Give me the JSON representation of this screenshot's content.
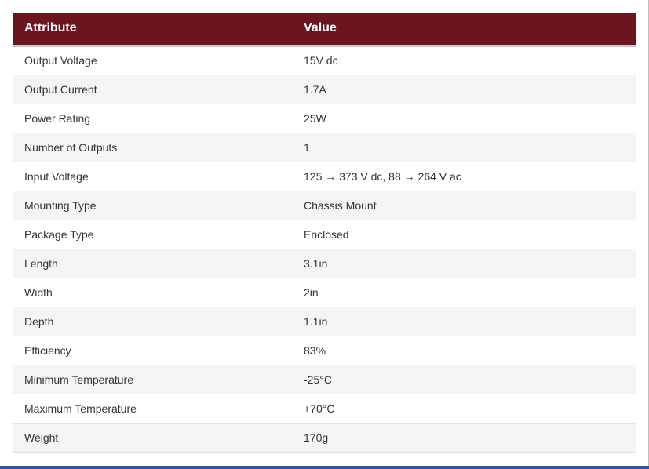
{
  "table": {
    "headers": [
      "Attribute",
      "Value"
    ],
    "rows": [
      [
        "Output Voltage",
        "15V dc"
      ],
      [
        "Output Current",
        "1.7A"
      ],
      [
        "Power Rating",
        "25W"
      ],
      [
        "Number of Outputs",
        "1"
      ],
      [
        "Input Voltage",
        "125 → 373 V dc, 88 → 264 V ac"
      ],
      [
        "Mounting Type",
        "Chassis Mount"
      ],
      [
        "Package Type",
        "Enclosed"
      ],
      [
        "Length",
        "3.1in"
      ],
      [
        "Width",
        "2in"
      ],
      [
        "Depth",
        "1.1in"
      ],
      [
        "Efficiency",
        "83%"
      ],
      [
        "Minimum Temperature",
        "-25°C"
      ],
      [
        "Maximum Temperature",
        "+70°C"
      ],
      [
        "Weight",
        "170g"
      ]
    ]
  },
  "colors": {
    "header_bg": "#6b1520",
    "header_text": "#ffffff",
    "row_alt_bg": "#f4f4f4",
    "bottom_bar": "#2f55a4"
  }
}
